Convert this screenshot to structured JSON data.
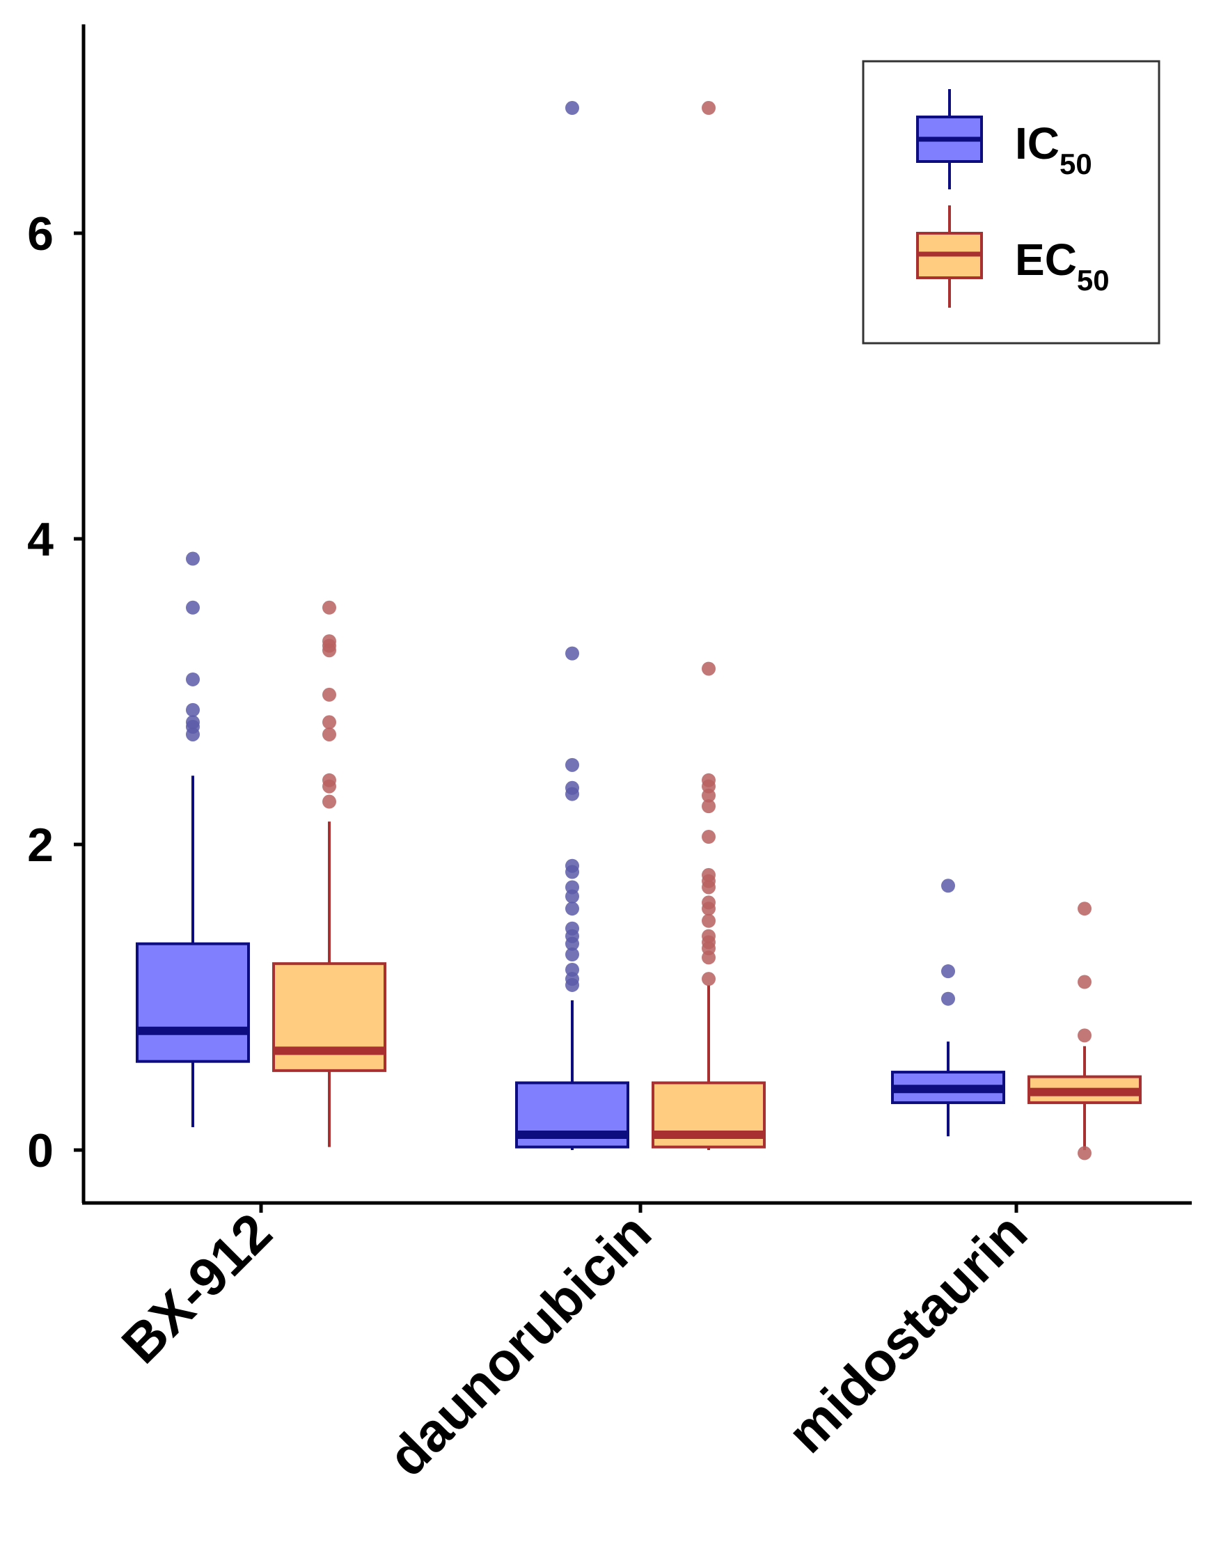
{
  "chart_data": {
    "type": "boxplot",
    "title": "",
    "xlabel": "",
    "ylabel": "",
    "ylim": [
      -0.35,
      7.6
    ],
    "yticks": [
      0,
      2,
      4,
      6
    ],
    "ytick_labels": [
      "0",
      "2",
      "4",
      "6"
    ],
    "categories": [
      "BX-912",
      "daunorubicin",
      "midostaurin"
    ],
    "grid": false,
    "legend_position": "top-right",
    "series": [
      {
        "name": "IC",
        "name_main": "IC",
        "name_sub": "50",
        "fill": "#8080ff",
        "stroke": "#0d0d80",
        "point_color": "#5a5aa8",
        "boxes": [
          {
            "q1": 0.58,
            "median": 0.78,
            "q3": 1.35,
            "whisker_low": 0.15,
            "whisker_high": 2.45,
            "outliers": [
              2.72,
              2.77,
              2.8,
              2.88,
              3.08,
              3.55,
              3.87
            ]
          },
          {
            "q1": 0.02,
            "median": 0.1,
            "q3": 0.44,
            "whisker_low": 0.0,
            "whisker_high": 0.98,
            "outliers": [
              1.08,
              1.12,
              1.18,
              1.28,
              1.35,
              1.4,
              1.45,
              1.58,
              1.66,
              1.72,
              1.82,
              1.86,
              2.33,
              2.37,
              2.52,
              3.25,
              6.82
            ]
          },
          {
            "q1": 0.31,
            "median": 0.4,
            "q3": 0.51,
            "whisker_low": 0.09,
            "whisker_high": 0.71,
            "outliers": [
              0.99,
              1.17,
              1.73
            ]
          }
        ]
      },
      {
        "name": "EC",
        "name_main": "EC",
        "name_sub": "50",
        "fill": "#ffcc80",
        "stroke": "#a83030",
        "point_color": "#b86060",
        "boxes": [
          {
            "q1": 0.52,
            "median": 0.65,
            "q3": 1.22,
            "whisker_low": 0.02,
            "whisker_high": 2.15,
            "outliers": [
              2.28,
              2.38,
              2.42,
              2.72,
              2.8,
              2.98,
              3.27,
              3.3,
              3.33,
              3.55
            ]
          },
          {
            "q1": 0.02,
            "median": 0.1,
            "q3": 0.44,
            "whisker_low": 0.0,
            "whisker_high": 1.08,
            "outliers": [
              1.12,
              1.26,
              1.32,
              1.36,
              1.4,
              1.5,
              1.58,
              1.62,
              1.72,
              1.76,
              1.8,
              2.05,
              2.25,
              2.32,
              2.38,
              2.42,
              3.15,
              6.82
            ]
          },
          {
            "q1": 0.31,
            "median": 0.38,
            "q3": 0.48,
            "whisker_low": 0.0,
            "whisker_high": 0.68,
            "outliers": [
              -0.02,
              0.75,
              1.1,
              1.58
            ]
          }
        ]
      }
    ]
  }
}
